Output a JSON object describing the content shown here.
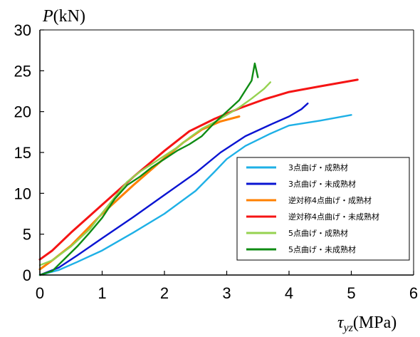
{
  "chart_data": {
    "type": "line",
    "title": "",
    "ylabel": {
      "italic": "P",
      "rest": "(kN)"
    },
    "xlabel": {
      "italic": "τ",
      "sub": "yz",
      "rest": "(MPa)"
    },
    "xlim": [
      0,
      6
    ],
    "ylim": [
      0,
      30
    ],
    "xticks": [
      0,
      1,
      2,
      3,
      4,
      5,
      6
    ],
    "yticks": [
      0,
      5,
      10,
      15,
      20,
      25,
      30
    ],
    "grid": false,
    "legend_position": "right",
    "series": [
      {
        "name": "3点曲げ・成熟材",
        "color": "#1eb0e6",
        "points": [
          [
            0,
            0
          ],
          [
            0.3,
            0.6
          ],
          [
            0.6,
            1.6
          ],
          [
            1.0,
            3.0
          ],
          [
            1.5,
            5.2
          ],
          [
            2.0,
            7.5
          ],
          [
            2.5,
            10.3
          ],
          [
            2.8,
            12.6
          ],
          [
            3.0,
            14.2
          ],
          [
            3.3,
            15.8
          ],
          [
            3.7,
            17.3
          ],
          [
            4.0,
            18.3
          ],
          [
            4.5,
            18.9
          ],
          [
            5.0,
            19.6
          ]
        ]
      },
      {
        "name": "3点曲げ・未成熟材",
        "color": "#0a14d2",
        "points": [
          [
            0,
            0
          ],
          [
            0.3,
            0.9
          ],
          [
            0.6,
            2.4
          ],
          [
            1.0,
            4.5
          ],
          [
            1.5,
            7.1
          ],
          [
            2.0,
            9.8
          ],
          [
            2.5,
            12.5
          ],
          [
            2.9,
            15.0
          ],
          [
            3.3,
            17.0
          ],
          [
            3.7,
            18.4
          ],
          [
            4.0,
            19.4
          ],
          [
            4.2,
            20.3
          ],
          [
            4.3,
            21.0
          ]
        ]
      },
      {
        "name": "逆対称4点曲げ・成熟材",
        "color": "#ff8000",
        "points": [
          [
            0,
            0.7
          ],
          [
            0.2,
            1.8
          ],
          [
            0.5,
            3.6
          ],
          [
            1.0,
            7.5
          ],
          [
            1.5,
            11.0
          ],
          [
            2.0,
            14.3
          ],
          [
            2.3,
            16.2
          ],
          [
            2.6,
            17.8
          ],
          [
            2.9,
            18.8
          ],
          [
            3.2,
            19.4
          ]
        ]
      },
      {
        "name": "逆対称4点曲げ・未成熟材",
        "color": "#f51414",
        "points": [
          [
            0,
            1.9
          ],
          [
            0.2,
            3.0
          ],
          [
            0.5,
            5.2
          ],
          [
            1.0,
            8.6
          ],
          [
            1.5,
            12.0
          ],
          [
            2.0,
            15.2
          ],
          [
            2.4,
            17.6
          ],
          [
            2.8,
            19.1
          ],
          [
            3.2,
            20.4
          ],
          [
            3.6,
            21.5
          ],
          [
            4.0,
            22.4
          ],
          [
            4.5,
            23.1
          ],
          [
            5.1,
            23.9
          ]
        ]
      },
      {
        "name": "5点曲げ・成熟材",
        "color": "#96d250",
        "points": [
          [
            0,
            1.2
          ],
          [
            0.2,
            1.8
          ],
          [
            0.5,
            3.5
          ],
          [
            0.8,
            5.6
          ],
          [
            1.0,
            7.6
          ],
          [
            1.2,
            9.5
          ],
          [
            1.4,
            11.4
          ],
          [
            1.6,
            12.6
          ],
          [
            1.8,
            13.6
          ],
          [
            2.0,
            14.6
          ],
          [
            2.2,
            15.6
          ],
          [
            2.4,
            16.8
          ],
          [
            2.6,
            17.9
          ],
          [
            2.8,
            18.7
          ],
          [
            3.0,
            19.6
          ],
          [
            3.2,
            20.5
          ],
          [
            3.4,
            21.6
          ],
          [
            3.6,
            22.8
          ],
          [
            3.7,
            23.6
          ]
        ]
      },
      {
        "name": "5点曲げ・未成熟材",
        "color": "#0f8c14",
        "points": [
          [
            0,
            0
          ],
          [
            0.2,
            0.5
          ],
          [
            0.4,
            2.0
          ],
          [
            0.6,
            3.5
          ],
          [
            0.8,
            5.2
          ],
          [
            1.0,
            7.0
          ],
          [
            1.2,
            9.3
          ],
          [
            1.4,
            11.0
          ],
          [
            1.6,
            12.0
          ],
          [
            1.8,
            13.2
          ],
          [
            2.0,
            14.2
          ],
          [
            2.2,
            15.2
          ],
          [
            2.4,
            16.0
          ],
          [
            2.6,
            17.0
          ],
          [
            2.8,
            18.6
          ],
          [
            3.0,
            20.0
          ],
          [
            3.2,
            21.4
          ],
          [
            3.3,
            22.6
          ],
          [
            3.4,
            23.8
          ],
          [
            3.45,
            25.9
          ],
          [
            3.5,
            24.2
          ]
        ]
      }
    ]
  }
}
